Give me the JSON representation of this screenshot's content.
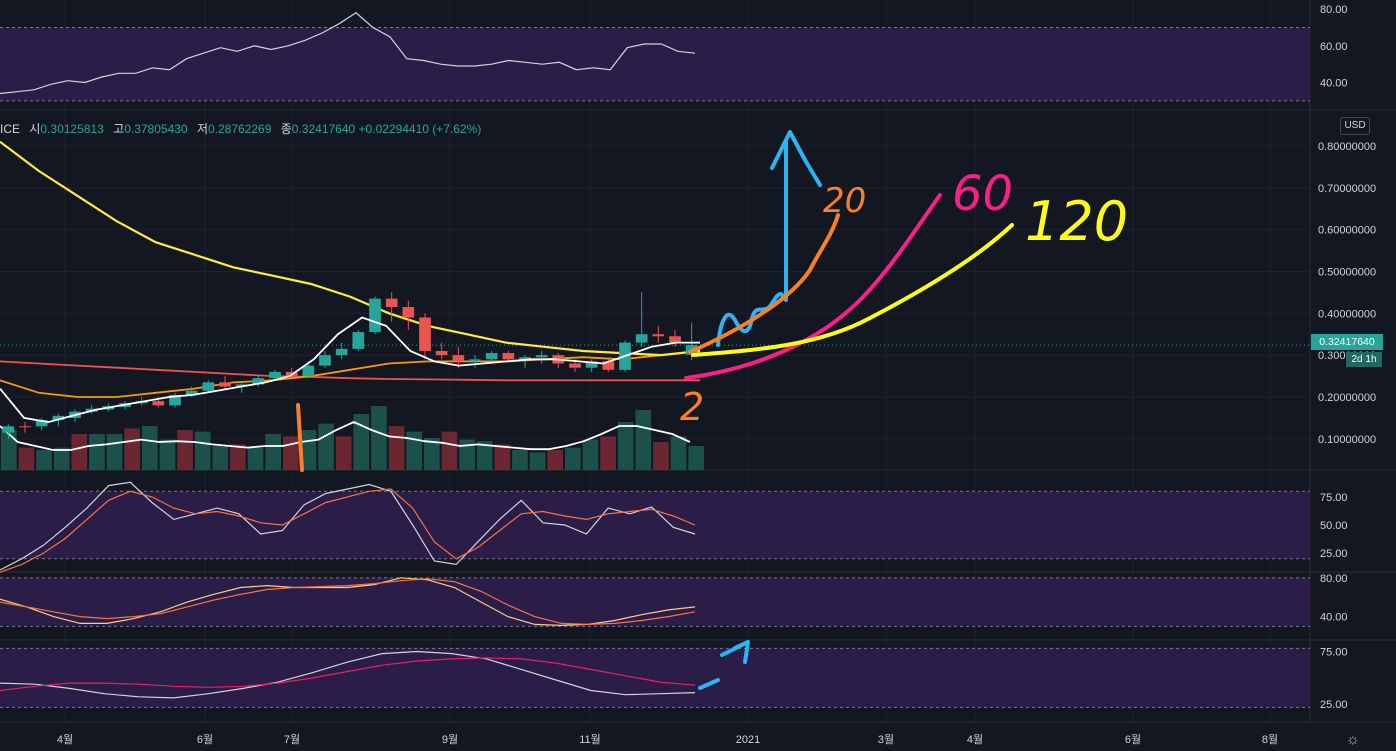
{
  "ohlc": {
    "ticker_fragment": "ICE",
    "open_label": "시",
    "open": "0.30125813",
    "high_label": "고",
    "high": "0.37805430",
    "low_label": "저",
    "low": "0.28762269",
    "close_label": "종",
    "close": "0.32417640",
    "change": "+0.02294410",
    "change_pct": "(+7.62%)"
  },
  "currency_button": "USD",
  "last_price_tag": "0.32417640",
  "timeframe_tag": "2d 1h",
  "colors": {
    "up": "#26a69a",
    "down": "#ef5350",
    "background": "#131722",
    "band": "#2a1d47"
  },
  "chart_data": [
    {
      "type": "line",
      "panel": "rsi-top",
      "yticks": [
        "80.00",
        "60.00",
        "40.00"
      ],
      "band": [
        30,
        70
      ],
      "series": [
        {
          "color": "#d1d4dc",
          "values": [
            34,
            35,
            36,
            39,
            41,
            40,
            43,
            45,
            45,
            48,
            47,
            53,
            56,
            59,
            57,
            60,
            58,
            60,
            63,
            67,
            72,
            78,
            70,
            65,
            53,
            52,
            50,
            49,
            49,
            50,
            52,
            51,
            50,
            51,
            47,
            48,
            47,
            59,
            61,
            61,
            57,
            56
          ]
        }
      ]
    },
    {
      "type": "candlestick",
      "panel": "price",
      "yticks": [
        "0.80000000",
        "0.70000000",
        "0.60000000",
        "0.50000000",
        "0.40000000",
        "0.30000000",
        "0.20000000",
        "0.10000000"
      ],
      "candles": [
        [
          0.115,
          0.135,
          0.1,
          0.13
        ],
        [
          0.13,
          0.14,
          0.115,
          0.128
        ],
        [
          0.13,
          0.15,
          0.12,
          0.145
        ],
        [
          0.145,
          0.16,
          0.13,
          0.155
        ],
        [
          0.15,
          0.17,
          0.14,
          0.165
        ],
        [
          0.165,
          0.18,
          0.16,
          0.172
        ],
        [
          0.17,
          0.185,
          0.165,
          0.178
        ],
        [
          0.176,
          0.19,
          0.17,
          0.185
        ],
        [
          0.185,
          0.2,
          0.18,
          0.19
        ],
        [
          0.19,
          0.2,
          0.175,
          0.18
        ],
        [
          0.18,
          0.21,
          0.175,
          0.205
        ],
        [
          0.205,
          0.225,
          0.2,
          0.215
        ],
        [
          0.215,
          0.24,
          0.21,
          0.235
        ],
        [
          0.235,
          0.25,
          0.22,
          0.225
        ],
        [
          0.225,
          0.235,
          0.21,
          0.23
        ],
        [
          0.23,
          0.25,
          0.225,
          0.245
        ],
        [
          0.245,
          0.265,
          0.24,
          0.26
        ],
        [
          0.26,
          0.27,
          0.245,
          0.25
        ],
        [
          0.25,
          0.285,
          0.245,
          0.275
        ],
        [
          0.275,
          0.31,
          0.27,
          0.3
        ],
        [
          0.3,
          0.33,
          0.29,
          0.315
        ],
        [
          0.315,
          0.36,
          0.31,
          0.355
        ],
        [
          0.355,
          0.44,
          0.35,
          0.435
        ],
        [
          0.435,
          0.45,
          0.38,
          0.415
        ],
        [
          0.415,
          0.43,
          0.36,
          0.39
        ],
        [
          0.39,
          0.4,
          0.29,
          0.31
        ],
        [
          0.31,
          0.33,
          0.29,
          0.3
        ],
        [
          0.3,
          0.32,
          0.27,
          0.285
        ],
        [
          0.285,
          0.3,
          0.27,
          0.29
        ],
        [
          0.29,
          0.31,
          0.28,
          0.305
        ],
        [
          0.305,
          0.31,
          0.285,
          0.29
        ],
        [
          0.29,
          0.3,
          0.27,
          0.295
        ],
        [
          0.295,
          0.31,
          0.28,
          0.3
        ],
        [
          0.3,
          0.305,
          0.27,
          0.28
        ],
        [
          0.28,
          0.29,
          0.26,
          0.27
        ],
        [
          0.27,
          0.29,
          0.26,
          0.285
        ],
        [
          0.285,
          0.29,
          0.26,
          0.265
        ],
        [
          0.265,
          0.335,
          0.26,
          0.33
        ],
        [
          0.33,
          0.45,
          0.32,
          0.35
        ],
        [
          0.35,
          0.37,
          0.33,
          0.345
        ],
        [
          0.345,
          0.36,
          0.32,
          0.33
        ],
        [
          0.301,
          0.378,
          0.288,
          0.324
        ]
      ],
      "ma_yellow": [
        0.81,
        0.74,
        0.68,
        0.62,
        0.57,
        0.54,
        0.51,
        0.49,
        0.47,
        0.44,
        0.4,
        0.37,
        0.35,
        0.33,
        0.32,
        0.31,
        0.305,
        0.3,
        0.31
      ],
      "ma_red": [
        0.285,
        0.28,
        0.275,
        0.27,
        0.265,
        0.26,
        0.255,
        0.25,
        0.248,
        0.245,
        0.243,
        0.242,
        0.241,
        0.24,
        0.24,
        0.24,
        0.24,
        0.24,
        0.24
      ],
      "ma_orange": [
        0.24,
        0.21,
        0.2,
        0.2,
        0.21,
        0.22,
        0.235,
        0.24,
        0.25,
        0.265,
        0.28,
        0.285,
        0.285,
        0.285,
        0.29,
        0.295,
        0.29,
        0.3,
        0.31
      ],
      "ma_white": [
        0.22,
        0.15,
        0.14,
        0.155,
        0.17,
        0.18,
        0.19,
        0.2,
        0.205,
        0.215,
        0.225,
        0.235,
        0.25,
        0.29,
        0.35,
        0.39,
        0.37,
        0.31,
        0.285,
        0.275,
        0.28,
        0.285,
        0.29,
        0.29,
        0.285,
        0.28,
        0.3,
        0.32,
        0.33,
        0.33
      ],
      "volume": [
        50,
        28,
        25,
        28,
        45,
        45,
        45,
        52,
        55,
        38,
        50,
        48,
        30,
        32,
        28,
        45,
        42,
        50,
        58,
        42,
        70,
        80,
        55,
        48,
        40,
        48,
        38,
        36,
        32,
        25,
        22,
        25,
        28,
        38,
        42,
        60,
        75,
        35,
        42,
        30
      ],
      "volume_ma": [
        55,
        35,
        30,
        25,
        25,
        30,
        32,
        35,
        38,
        35,
        36,
        35,
        32,
        30,
        28,
        30,
        30,
        35,
        38,
        50,
        60,
        50,
        42,
        40,
        36,
        34,
        30,
        32,
        30,
        28,
        26,
        26,
        30,
        36,
        45,
        55,
        55,
        50,
        45,
        35
      ]
    },
    {
      "type": "line",
      "panel": "stoch",
      "yticks": [
        "75.00",
        "50.00",
        "25.00"
      ],
      "band": [
        20,
        80
      ],
      "series": [
        {
          "color": "#d1d4dc",
          "values": [
            10,
            20,
            32,
            48,
            65,
            85,
            88,
            70,
            55,
            60,
            65,
            60,
            42,
            45,
            68,
            78,
            82,
            86,
            80,
            50,
            18,
            15,
            35,
            55,
            72,
            52,
            50,
            42,
            65,
            60,
            66,
            48,
            42
          ]
        },
        {
          "color": "#ff7043",
          "values": [
            8,
            15,
            25,
            38,
            55,
            72,
            80,
            75,
            65,
            60,
            62,
            58,
            52,
            50,
            60,
            70,
            75,
            80,
            82,
            65,
            35,
            20,
            30,
            45,
            60,
            62,
            58,
            55,
            60,
            62,
            64,
            58,
            50
          ]
        }
      ]
    },
    {
      "type": "line",
      "panel": "oscillator",
      "yticks": [
        "80.00",
        "40.00"
      ],
      "band": [
        30,
        80
      ],
      "series": [
        {
          "color": "#ffcc80",
          "values": [
            58,
            50,
            40,
            33,
            33,
            38,
            45,
            55,
            63,
            70,
            72,
            70,
            70,
            70,
            73,
            80,
            78,
            70,
            55,
            40,
            32,
            31,
            32,
            36,
            42,
            47,
            50
          ]
        },
        {
          "color": "#ff7043",
          "values": [
            55,
            50,
            45,
            40,
            38,
            40,
            43,
            50,
            57,
            63,
            68,
            70,
            71,
            72,
            74,
            77,
            79,
            76,
            66,
            52,
            40,
            33,
            32,
            33,
            36,
            40,
            45
          ]
        }
      ]
    },
    {
      "type": "line",
      "panel": "rsi-bottom",
      "yticks": [
        "75.00",
        "25.00"
      ],
      "band": [
        22,
        78
      ],
      "series": [
        {
          "color": "#d1d4dc",
          "values": [
            45,
            44,
            40,
            35,
            32,
            31,
            35,
            40,
            46,
            55,
            65,
            73,
            75,
            73,
            68,
            58,
            48,
            38,
            34,
            35,
            36
          ]
        },
        {
          "color": "#e91e63",
          "values": [
            38,
            42,
            45,
            45,
            44,
            42,
            41,
            42,
            45,
            50,
            56,
            62,
            66,
            68,
            69,
            68,
            64,
            58,
            52,
            46,
            43
          ]
        }
      ]
    }
  ],
  "x_axis_labels": [
    "4월",
    "6월",
    "7월",
    "9월",
    "11월",
    "2021",
    "3월",
    "4월",
    "6월",
    "8월"
  ],
  "annotations": [
    "20",
    "60",
    "120",
    "2",
    "1"
  ]
}
